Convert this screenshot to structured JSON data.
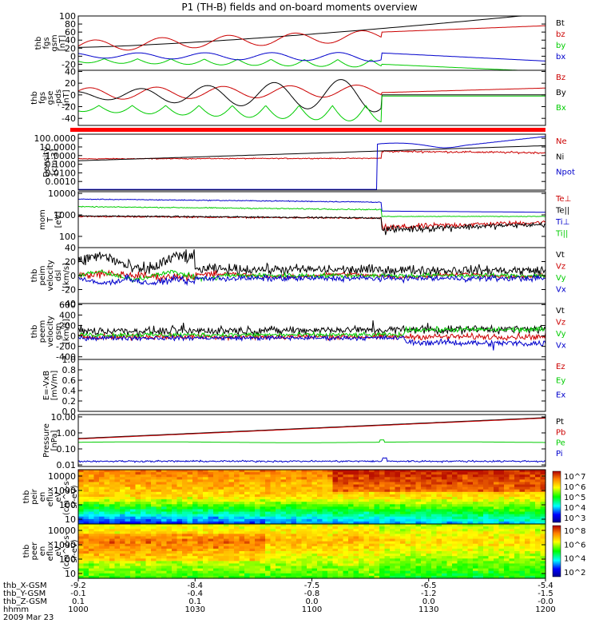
{
  "title": "P1 (TH-B) fields and on-board moments overview",
  "chart_data": [
    {
      "type": "line",
      "ylabel": [
        "thb",
        "fgs",
        "gsm",
        "[nT]"
      ],
      "yticks": [
        "100",
        "80",
        "60",
        "40",
        "20",
        "0",
        "-20"
      ],
      "ylim": [
        -35,
        100
      ],
      "scale": "linear",
      "series": [
        {
          "name": "Bt",
          "color": "#000000",
          "kind": "Bt",
          "values": [
            22,
            26,
            30,
            34,
            38,
            43,
            48,
            53,
            58,
            64,
            70,
            76,
            83,
            90,
            97,
            104
          ]
        },
        {
          "name": "bz",
          "color": "#cc0000",
          "kind": "bz",
          "values": [
            20,
            24,
            28,
            32,
            36,
            40,
            44,
            48,
            52,
            58,
            63,
            68,
            72,
            76,
            82,
            88
          ]
        },
        {
          "name": "by",
          "color": "#00cc00",
          "kind": "by",
          "values": [
            -12,
            -14,
            -16,
            -17,
            -18,
            -20,
            -22,
            -23,
            -24,
            -25,
            -26,
            -27,
            -28,
            -29,
            -30,
            -31
          ]
        },
        {
          "name": "bx",
          "color": "#0000cc",
          "kind": "bx",
          "values": [
            6,
            5,
            4,
            3,
            2,
            1,
            0,
            -1,
            -2,
            -3,
            -5,
            -7,
            -9,
            -11,
            -13,
            -15
          ]
        }
      ]
    },
    {
      "type": "line",
      "ylabel": [
        "thb",
        "fgs",
        "gse",
        "-pds",
        "[nT]"
      ],
      "yticks": [
        "40",
        "20",
        "0",
        "-20",
        "-40"
      ],
      "ylim": [
        -52,
        42
      ],
      "scale": "linear",
      "series": [
        {
          "name": "Bz",
          "color": "#cc0000",
          "kind": "Bz2",
          "values": []
        },
        {
          "name": "By",
          "color": "#000000",
          "kind": "By2",
          "values": []
        },
        {
          "name": "Bx",
          "color": "#00cc00",
          "kind": "Bx2",
          "values": []
        }
      ]
    },
    {
      "type": "line",
      "ylabel": [
        "Density",
        "[cm-3]"
      ],
      "yticks": [
        "100.0000",
        "10.0000",
        "1.0000",
        "0.1000",
        "0.0100",
        "0.0010"
      ],
      "ylim": [
        0.0001,
        300
      ],
      "scale": "log",
      "series": [
        {
          "name": "Ne",
          "color": "#cc0000",
          "kind": "Ne",
          "values": []
        },
        {
          "name": "Ni",
          "color": "#000000",
          "kind": "Ni",
          "values": []
        },
        {
          "name": "Npot",
          "color": "#0000cc",
          "kind": "Npot",
          "values": []
        }
      ]
    },
    {
      "type": "line",
      "ylabel": [
        "mom",
        "T",
        "[eV]"
      ],
      "yticks": [
        "10000",
        "1000",
        "100"
      ],
      "ylim": [
        30,
        12000
      ],
      "scale": "log",
      "series": [
        {
          "name": "Te⊥",
          "color": "#cc0000",
          "kind": "Tep",
          "values": []
        },
        {
          "name": "Te||",
          "color": "#000000",
          "kind": "Tepar",
          "values": []
        },
        {
          "name": "Ti⊥",
          "color": "#0000cc",
          "kind": "Tip",
          "values": []
        },
        {
          "name": "Ti||",
          "color": "#00cc00",
          "kind": "Tipar",
          "values": []
        }
      ]
    },
    {
      "type": "line",
      "ylabel": [
        "thb",
        "peim",
        "velocity",
        "dsl",
        "[km/s]"
      ],
      "yticks": [
        "40",
        "20",
        "0",
        "-20",
        "-40"
      ],
      "ylim": [
        -40,
        40
      ],
      "scale": "linear",
      "series": [
        {
          "name": "Vt",
          "color": "#000000",
          "kind": "Vt1",
          "values": []
        },
        {
          "name": "Vz",
          "color": "#cc0000",
          "kind": "Vz1",
          "values": []
        },
        {
          "name": "Vy",
          "color": "#00cc00",
          "kind": "Vy1",
          "values": []
        },
        {
          "name": "Vx",
          "color": "#0000cc",
          "kind": "Vx1",
          "values": []
        }
      ]
    },
    {
      "type": "line",
      "ylabel": [
        "thb",
        "peem",
        "velocity",
        "gsm",
        "[km/s]"
      ],
      "yticks": [
        "600",
        "400",
        "200",
        "0",
        "-200",
        "-400"
      ],
      "ylim": [
        -450,
        620
      ],
      "scale": "linear",
      "series": [
        {
          "name": "Vt",
          "color": "#000000",
          "kind": "Vt2",
          "values": []
        },
        {
          "name": "Vz",
          "color": "#cc0000",
          "kind": "Vz2",
          "values": []
        },
        {
          "name": "Vy",
          "color": "#00cc00",
          "kind": "Vy2",
          "values": []
        },
        {
          "name": "Vx",
          "color": "#0000cc",
          "kind": "Vx2",
          "values": []
        }
      ]
    },
    {
      "type": "line",
      "ylabel": [
        "E=-VxB",
        "[mV/m]"
      ],
      "yticks": [
        "1.0",
        "0.8",
        "0.6",
        "0.4",
        "0.2",
        "0.0"
      ],
      "ylim": [
        0,
        1
      ],
      "scale": "linear",
      "series": [
        {
          "name": "Ez",
          "color": "#cc0000",
          "kind": "none",
          "values": []
        },
        {
          "name": "Ey",
          "color": "#00cc00",
          "kind": "none",
          "values": []
        },
        {
          "name": "Ex",
          "color": "#0000cc",
          "kind": "none",
          "values": []
        }
      ]
    },
    {
      "type": "line",
      "ylabel": [
        "Pressure",
        "[nPa]"
      ],
      "yticks": [
        "10.00",
        "1.00",
        "0.10",
        "0.01"
      ],
      "ylim": [
        0.008,
        14
      ],
      "scale": "log",
      "series": [
        {
          "name": "Pt",
          "color": "#000000",
          "kind": "Pt",
          "values": []
        },
        {
          "name": "Pb",
          "color": "#cc0000",
          "kind": "Pb",
          "values": []
        },
        {
          "name": "Pe",
          "color": "#00cc00",
          "kind": "Pe",
          "values": []
        },
        {
          "name": "Pi",
          "color": "#0000cc",
          "kind": "Pi",
          "values": []
        }
      ]
    },
    {
      "type": "heatmap",
      "ylabel": [
        "thb",
        "peir",
        "en",
        "eflux",
        "eV",
        "(cm^2-s-",
        "sr-eV)"
      ],
      "yticks": [
        "10000",
        "1000",
        "100",
        "10"
      ],
      "colorbar": [
        "10^7",
        "10^6",
        "10^5",
        "10^4",
        "10^3"
      ],
      "variant": "ion"
    },
    {
      "type": "heatmap",
      "ylabel": [
        "thb",
        "peer",
        "en",
        "eflux",
        "eV",
        "(cm^2-s-",
        "sr-eV)"
      ],
      "yticks": [
        "10000",
        "1000",
        "100",
        "10"
      ],
      "colorbar": [
        "10^8",
        "10^6",
        "10^4",
        "10^2"
      ],
      "variant": "electron"
    }
  ],
  "xaxis": {
    "rows": [
      {
        "label": "thb_X-GSM",
        "values": [
          "-9.2",
          "-8.4",
          "-7.5",
          "-6.5",
          "-5.4"
        ]
      },
      {
        "label": "thb_Y-GSM",
        "values": [
          "-0.1",
          "-0.4",
          "-0.8",
          "-1.2",
          "-1.5"
        ]
      },
      {
        "label": "thb_Z-GSM",
        "values": [
          "0.1",
          "0.1",
          "0.0",
          "0.0",
          "-0.0"
        ]
      },
      {
        "label": "hhmm",
        "values": [
          "1000",
          "1030",
          "1100",
          "1130",
          "1200"
        ]
      }
    ],
    "date": "2009 Mar 23"
  }
}
